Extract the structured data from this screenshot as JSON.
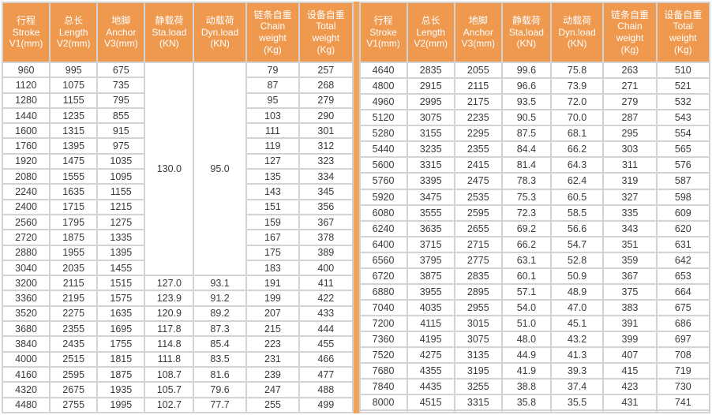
{
  "table": {
    "columns": [
      {
        "lines": [
          "行程",
          "Stroke",
          "V1(mm)"
        ]
      },
      {
        "lines": [
          "总长",
          "Length",
          "V2(mm)"
        ]
      },
      {
        "lines": [
          "地脚",
          "Anchor",
          "V3(mm)"
        ]
      },
      {
        "lines": [
          "静载荷",
          "Sta.load",
          "(KN)"
        ]
      },
      {
        "lines": [
          "动载荷",
          "Dyn.load",
          "(KN)"
        ]
      },
      {
        "lines": [
          "链条自重",
          "Chain",
          "weight",
          "(Kg)"
        ]
      },
      {
        "lines": [
          "设备自重",
          "Total",
          "weight",
          "(Kg)"
        ]
      }
    ],
    "left": {
      "merged": {
        "sta_load": "130.0",
        "dyn_load": "95.0",
        "row_span": 14
      },
      "rows": [
        [
          "960",
          "995",
          "675",
          "",
          "",
          "79",
          "257"
        ],
        [
          "1120",
          "1075",
          "735",
          "",
          "",
          "87",
          "268"
        ],
        [
          "1280",
          "1155",
          "795",
          "",
          "",
          "95",
          "279"
        ],
        [
          "1440",
          "1235",
          "855",
          "",
          "",
          "103",
          "290"
        ],
        [
          "1600",
          "1315",
          "915",
          "",
          "",
          "111",
          "301"
        ],
        [
          "1760",
          "1395",
          "975",
          "",
          "",
          "119",
          "312"
        ],
        [
          "1920",
          "1475",
          "1035",
          "",
          "",
          "127",
          "323"
        ],
        [
          "2080",
          "1555",
          "1095",
          "",
          "",
          "135",
          "334"
        ],
        [
          "2240",
          "1635",
          "1155",
          "",
          "",
          "143",
          "345"
        ],
        [
          "2400",
          "1715",
          "1215",
          "",
          "",
          "151",
          "356"
        ],
        [
          "2560",
          "1795",
          "1275",
          "",
          "",
          "159",
          "367"
        ],
        [
          "2720",
          "1875",
          "1335",
          "",
          "",
          "167",
          "378"
        ],
        [
          "2880",
          "1955",
          "1395",
          "",
          "",
          "175",
          "389"
        ],
        [
          "3040",
          "2035",
          "1455",
          "",
          "",
          "183",
          "400"
        ],
        [
          "3200",
          "2115",
          "1515",
          "127.0",
          "93.1",
          "191",
          "411"
        ],
        [
          "3360",
          "2195",
          "1575",
          "123.9",
          "91.2",
          "199",
          "422"
        ],
        [
          "3520",
          "2275",
          "1635",
          "120.9",
          "89.2",
          "207",
          "433"
        ],
        [
          "3680",
          "2355",
          "1695",
          "117.8",
          "87.3",
          "215",
          "444"
        ],
        [
          "3840",
          "2435",
          "1755",
          "114.8",
          "85.4",
          "223",
          "455"
        ],
        [
          "4000",
          "2515",
          "1815",
          "111.8",
          "83.5",
          "231",
          "466"
        ],
        [
          "4160",
          "2595",
          "1875",
          "108.7",
          "81.6",
          "239",
          "477"
        ],
        [
          "4320",
          "2675",
          "1935",
          "105.7",
          "79.6",
          "247",
          "488"
        ],
        [
          "4480",
          "2755",
          "1995",
          "102.7",
          "77.7",
          "255",
          "499"
        ]
      ]
    },
    "right": {
      "rows": [
        [
          "4640",
          "2835",
          "2055",
          "99.6",
          "75.8",
          "263",
          "510"
        ],
        [
          "4800",
          "2915",
          "2115",
          "96.6",
          "73.9",
          "271",
          "521"
        ],
        [
          "4960",
          "2995",
          "2175",
          "93.5",
          "72.0",
          "279",
          "532"
        ],
        [
          "5120",
          "3075",
          "2235",
          "90.5",
          "70.0",
          "287",
          "543"
        ],
        [
          "5280",
          "3155",
          "2295",
          "87.5",
          "68.1",
          "295",
          "554"
        ],
        [
          "5440",
          "3235",
          "2355",
          "84.4",
          "66.2",
          "303",
          "565"
        ],
        [
          "5600",
          "3315",
          "2415",
          "81.4",
          "64.3",
          "311",
          "576"
        ],
        [
          "5760",
          "3395",
          "2475",
          "78.3",
          "62.4",
          "319",
          "587"
        ],
        [
          "5920",
          "3475",
          "2535",
          "75.3",
          "60.5",
          "327",
          "598"
        ],
        [
          "6080",
          "3555",
          "2595",
          "72.3",
          "58.5",
          "335",
          "609"
        ],
        [
          "6240",
          "3635",
          "2655",
          "69.2",
          "56.6",
          "343",
          "620"
        ],
        [
          "6400",
          "3715",
          "2715",
          "66.2",
          "54.7",
          "351",
          "631"
        ],
        [
          "6560",
          "3795",
          "2775",
          "63.1",
          "52.8",
          "359",
          "642"
        ],
        [
          "6720",
          "3875",
          "2835",
          "60.1",
          "50.9",
          "367",
          "653"
        ],
        [
          "6880",
          "3955",
          "2895",
          "57.1",
          "48.9",
          "375",
          "664"
        ],
        [
          "7040",
          "4035",
          "2955",
          "54.0",
          "47.0",
          "383",
          "675"
        ],
        [
          "7200",
          "4115",
          "3015",
          "51.0",
          "45.1",
          "391",
          "686"
        ],
        [
          "7360",
          "4195",
          "3075",
          "48.0",
          "43.2",
          "399",
          "697"
        ],
        [
          "7520",
          "4275",
          "3135",
          "44.9",
          "41.3",
          "407",
          "708"
        ],
        [
          "7680",
          "4355",
          "3195",
          "41.9",
          "39.3",
          "415",
          "719"
        ],
        [
          "7840",
          "4435",
          "3255",
          "38.8",
          "37.4",
          "423",
          "730"
        ],
        [
          "8000",
          "4515",
          "3315",
          "35.8",
          "35.5",
          "431",
          "741"
        ],
        [
          "",
          "",
          "",
          "",
          "",
          "",
          ""
        ]
      ]
    },
    "colors": {
      "header_orange": "#ef994f",
      "divider_orange": "#f1a35c",
      "grid_gray": "#d3d3d3",
      "text_dark": "#3a3a3a",
      "header_text": "#ffffff"
    }
  }
}
